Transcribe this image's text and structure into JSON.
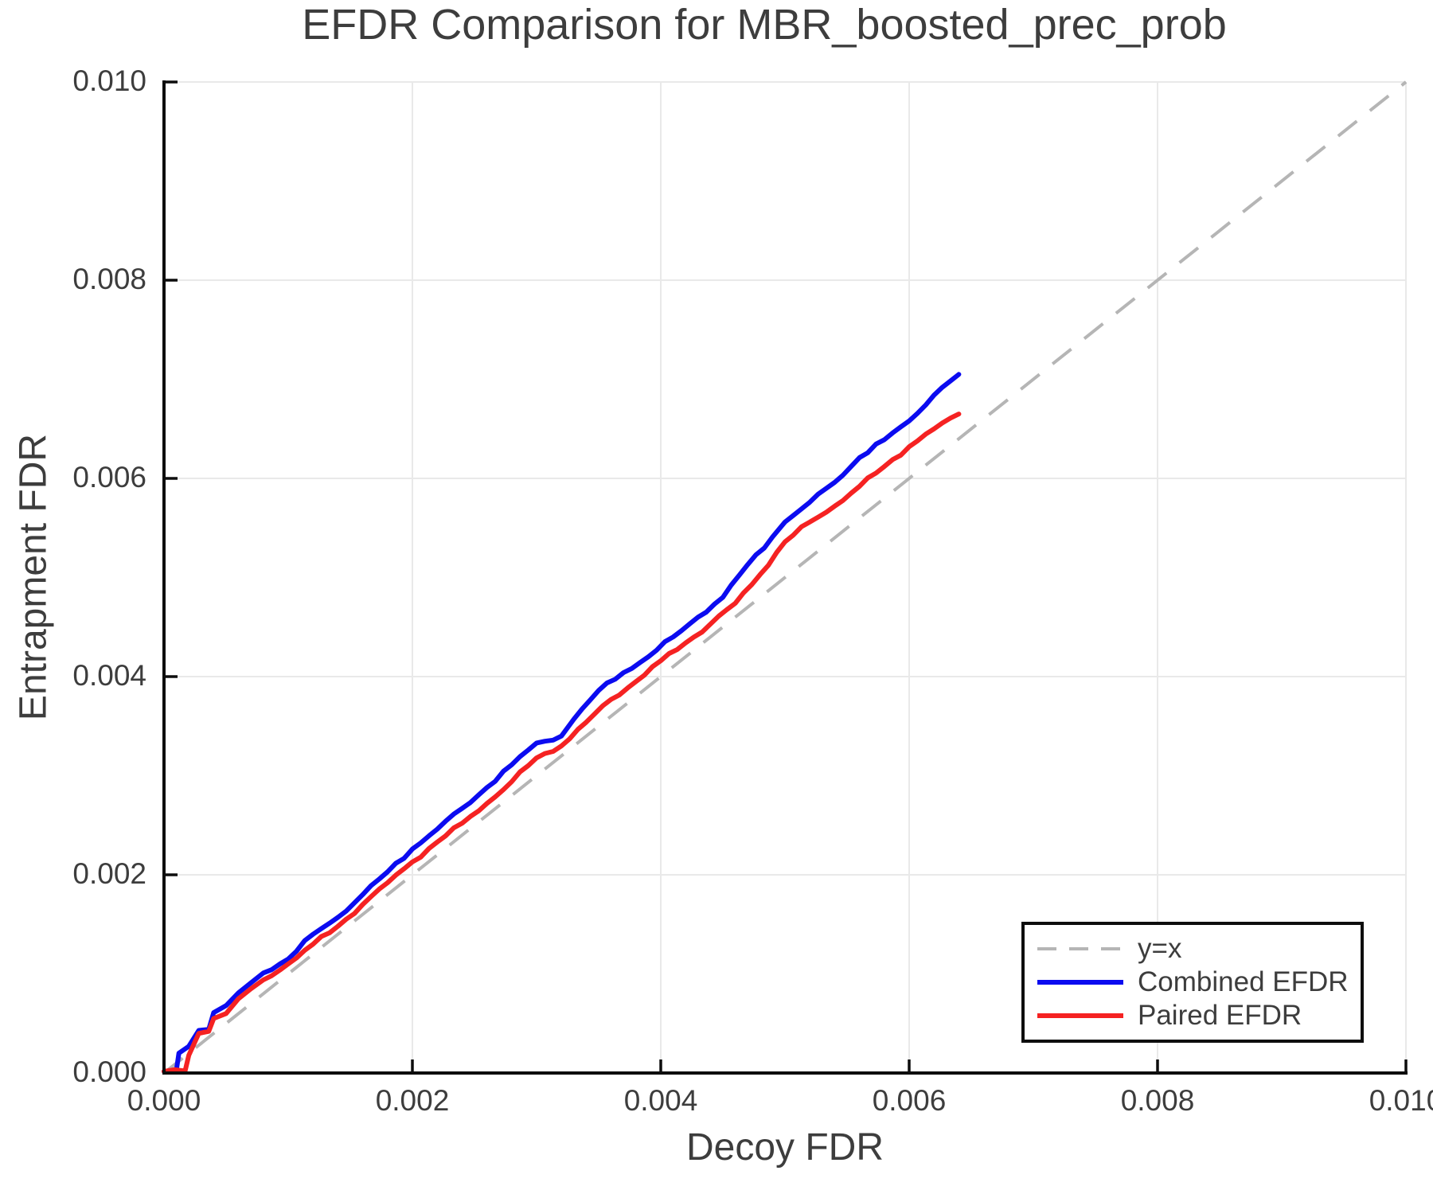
{
  "chart_data": {
    "type": "line",
    "title": "EFDR Comparison for MBR_boosted_prec_prob",
    "xlabel": "Decoy FDR",
    "ylabel": "Entrapment FDR",
    "xlim": [
      0.0,
      0.01
    ],
    "ylim": [
      0.0,
      0.01
    ],
    "x_ticks": [
      0.0,
      0.002,
      0.004,
      0.006,
      0.008,
      0.01
    ],
    "x_tick_labels": [
      "0.000",
      "0.002",
      "0.004",
      "0.006",
      "0.008",
      "0.010"
    ],
    "y_ticks": [
      0.0,
      0.002,
      0.004,
      0.006,
      0.008,
      0.01
    ],
    "y_tick_labels": [
      "0.000",
      "0.002",
      "0.004",
      "0.006",
      "0.008",
      "0.010"
    ],
    "grid": true,
    "legend_position": "bottom-right",
    "reference_line": {
      "label": "y=x",
      "style": "dashed",
      "color": "#b5b5b5",
      "from": [
        0.0,
        0.0
      ],
      "to": [
        0.01,
        0.01
      ]
    },
    "series": [
      {
        "name": "Combined EFDR",
        "color": "#0b0bf0",
        "points": [
          [
            0.0,
            0.0
          ],
          [
            0.0001,
            3e-05
          ],
          [
            0.00012,
            0.0002
          ],
          [
            0.0002,
            0.00027
          ],
          [
            0.00028,
            0.00043
          ],
          [
            0.00036,
            0.00044
          ],
          [
            0.0004,
            0.00061
          ],
          [
            0.0005,
            0.00068
          ],
          [
            0.0006,
            0.00081
          ],
          [
            0.0007,
            0.00091
          ],
          [
            0.0008,
            0.00101
          ],
          [
            0.001,
            0.00115
          ],
          [
            0.0012,
            0.0014
          ],
          [
            0.0014,
            0.00157
          ],
          [
            0.0016,
            0.0018
          ],
          [
            0.0018,
            0.00203
          ],
          [
            0.002,
            0.00226
          ],
          [
            0.0022,
            0.00246
          ],
          [
            0.0024,
            0.00267
          ],
          [
            0.0026,
            0.00288
          ],
          [
            0.0028,
            0.00311
          ],
          [
            0.003,
            0.00333
          ],
          [
            0.0032,
            0.0034
          ],
          [
            0.0033,
            0.00357
          ],
          [
            0.0035,
            0.00386
          ],
          [
            0.0037,
            0.00404
          ],
          [
            0.0039,
            0.0042
          ],
          [
            0.0041,
            0.0044
          ],
          [
            0.0043,
            0.0046
          ],
          [
            0.0045,
            0.0048
          ],
          [
            0.0047,
            0.00513
          ],
          [
            0.0049,
            0.00541
          ],
          [
            0.005,
            0.00556
          ],
          [
            0.0052,
            0.00576
          ],
          [
            0.0054,
            0.00596
          ],
          [
            0.0056,
            0.00621
          ],
          [
            0.0058,
            0.00639
          ],
          [
            0.006,
            0.00658
          ],
          [
            0.0062,
            0.00684
          ],
          [
            0.0064,
            0.00705
          ]
        ]
      },
      {
        "name": "Paired EFDR",
        "color": "#f52222",
        "points": [
          [
            0.0,
            0.0
          ],
          [
            0.00017,
            2e-05
          ],
          [
            0.0002,
            0.00018
          ],
          [
            0.00028,
            0.0004
          ],
          [
            0.00036,
            0.00042
          ],
          [
            0.0004,
            0.00055
          ],
          [
            0.0005,
            0.0006
          ],
          [
            0.0006,
            0.00075
          ],
          [
            0.0007,
            0.00085
          ],
          [
            0.0008,
            0.00094
          ],
          [
            0.001,
            0.0011
          ],
          [
            0.0012,
            0.0013
          ],
          [
            0.0014,
            0.00148
          ],
          [
            0.0016,
            0.0017
          ],
          [
            0.0018,
            0.00192
          ],
          [
            0.002,
            0.00213
          ],
          [
            0.0022,
            0.00233
          ],
          [
            0.0024,
            0.00252
          ],
          [
            0.0026,
            0.00272
          ],
          [
            0.0028,
            0.00294
          ],
          [
            0.003,
            0.00318
          ],
          [
            0.0032,
            0.0033
          ],
          [
            0.0034,
            0.00354
          ],
          [
            0.0036,
            0.00377
          ],
          [
            0.0038,
            0.00395
          ],
          [
            0.004,
            0.00416
          ],
          [
            0.0042,
            0.00434
          ],
          [
            0.0044,
            0.00453
          ],
          [
            0.0046,
            0.00474
          ],
          [
            0.0048,
            0.00503
          ],
          [
            0.005,
            0.00536
          ],
          [
            0.0052,
            0.00556
          ],
          [
            0.0054,
            0.00572
          ],
          [
            0.0056,
            0.00592
          ],
          [
            0.0058,
            0.00612
          ],
          [
            0.006,
            0.00632
          ],
          [
            0.0062,
            0.0065
          ],
          [
            0.0064,
            0.00665
          ]
        ]
      }
    ],
    "legend": {
      "items": [
        {
          "label": "y=x",
          "swatch": "dashed",
          "color": "#b5b5b5"
        },
        {
          "label": "Combined EFDR",
          "swatch": "solid",
          "color": "#0b0bf0"
        },
        {
          "label": "Paired EFDR",
          "swatch": "solid",
          "color": "#f52222"
        }
      ]
    },
    "colors": {
      "grid": "#e9e9e9",
      "axis": "#0d0d0d",
      "text": "#3d3d3d",
      "identity_line": "#b5b5b5"
    }
  }
}
